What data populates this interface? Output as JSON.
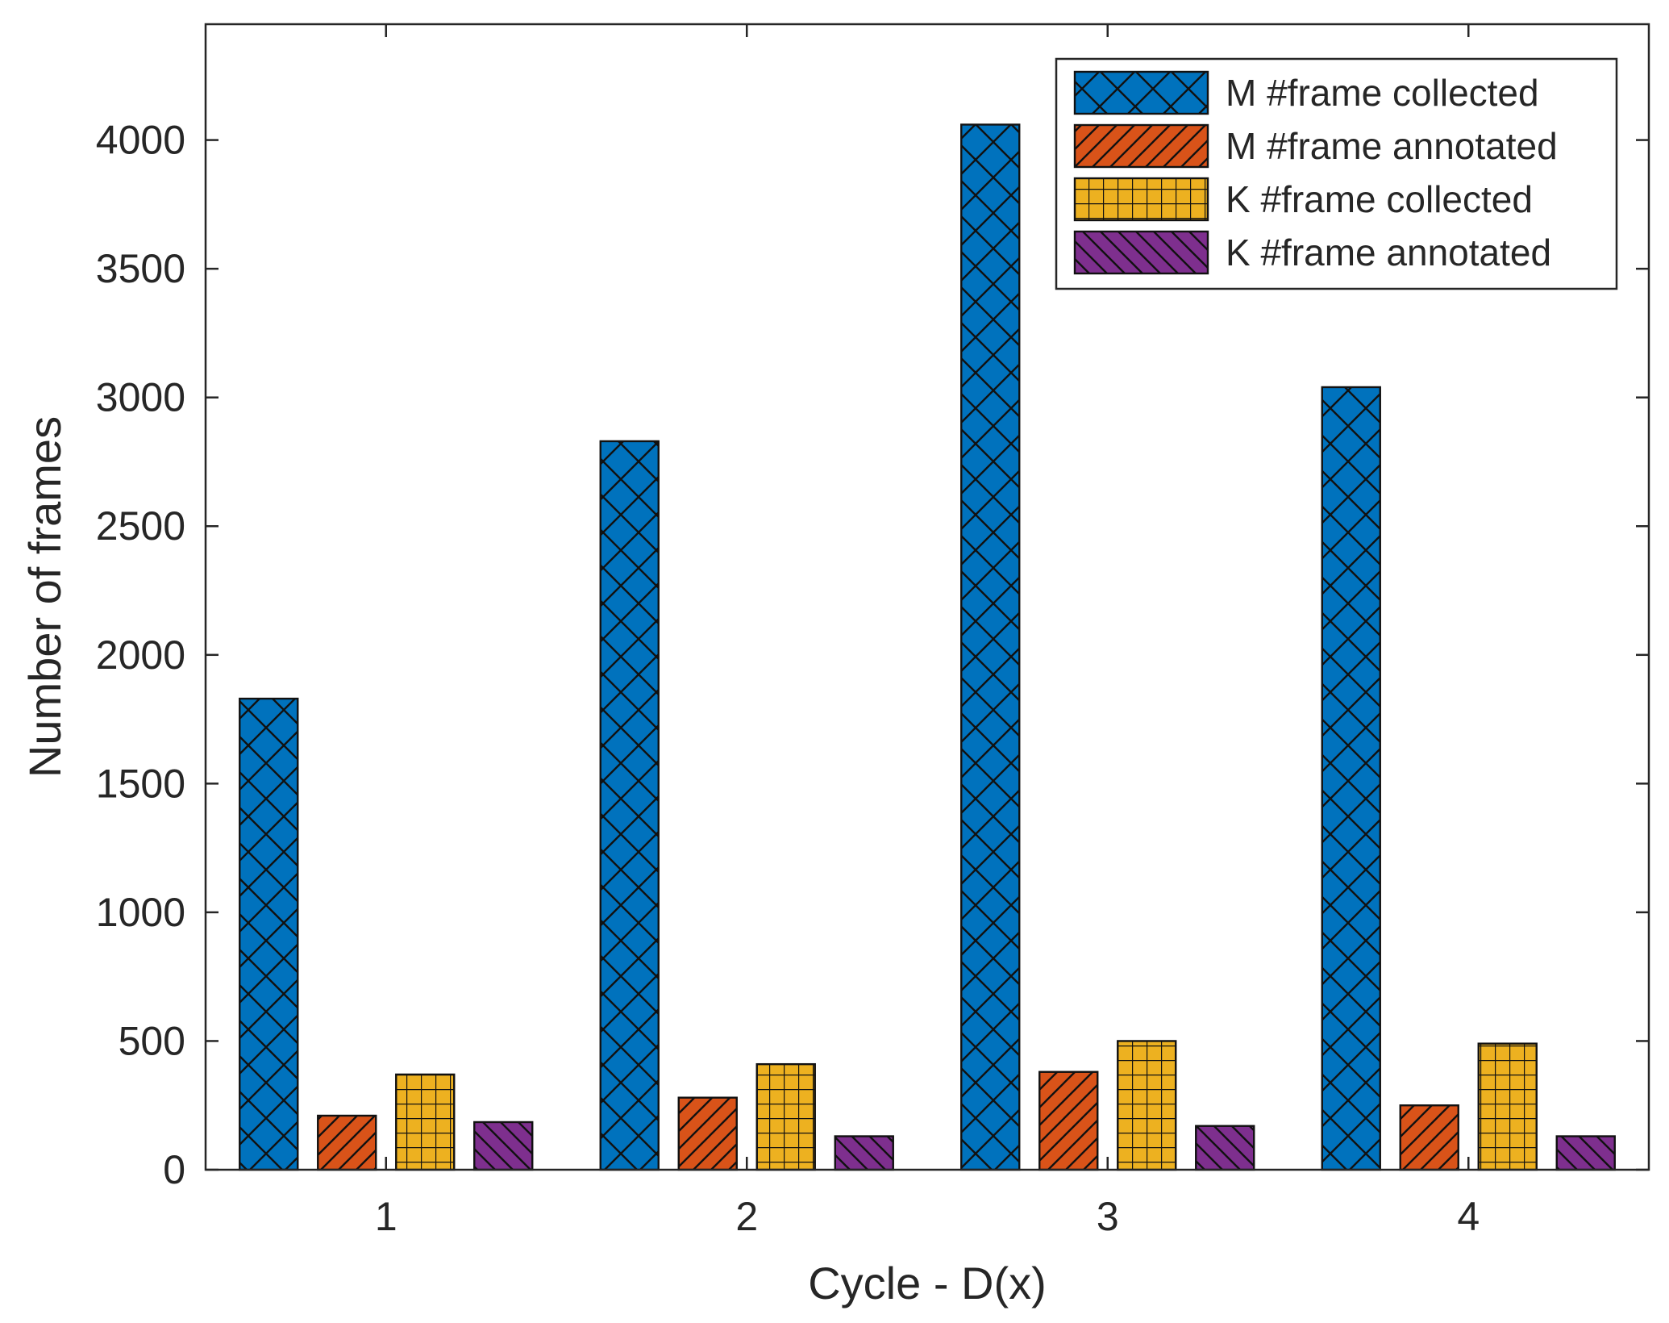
{
  "chart_data": {
    "type": "bar",
    "title": "",
    "xlabel": "Cycle - D(x)",
    "ylabel": "Number of frames",
    "categories": [
      "1",
      "2",
      "3",
      "4"
    ],
    "ylim": [
      0,
      4450
    ],
    "yticks": [
      0,
      500,
      1000,
      1500,
      2000,
      2500,
      3000,
      3500,
      4000
    ],
    "yticklabels": [
      "0",
      "500",
      "1000",
      "1500",
      "2000",
      "2500",
      "3000",
      "3500",
      "4000"
    ],
    "grid": false,
    "legend_position": "top-right",
    "series": [
      {
        "name": "M #frame collected",
        "values": [
          1830,
          2830,
          4060,
          3040
        ],
        "color": "#0072BD",
        "hatch": "cross-diagonal"
      },
      {
        "name": "M #frame annotated",
        "values": [
          210,
          280,
          380,
          250
        ],
        "color": "#D95319",
        "hatch": "diagonal-right"
      },
      {
        "name": "K #frame collected",
        "values": [
          370,
          410,
          500,
          490
        ],
        "color": "#EDB120",
        "hatch": "grid"
      },
      {
        "name": "K #frame annotated",
        "values": [
          185,
          130,
          170,
          130
        ],
        "color": "#7E2F8E",
        "hatch": "diagonal-left"
      }
    ]
  }
}
